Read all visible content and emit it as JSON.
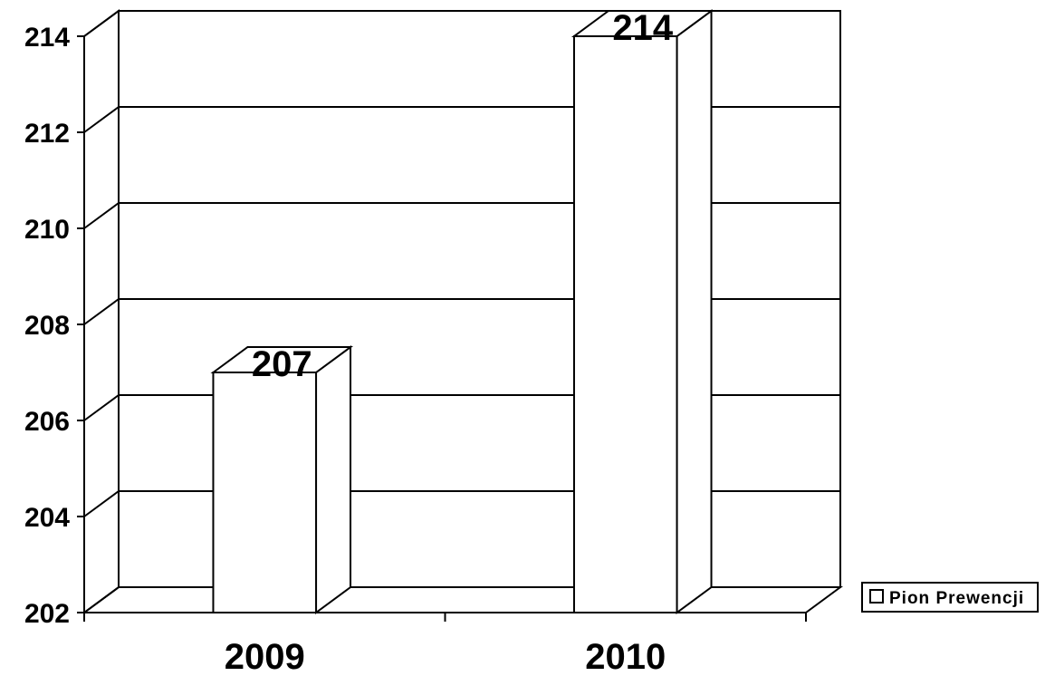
{
  "chart_data": {
    "type": "bar",
    "categories": [
      "2009",
      "2010"
    ],
    "series": [
      {
        "name": "Pion Prewencji",
        "values": [
          207,
          214
        ]
      }
    ],
    "ylim": [
      202,
      214
    ],
    "yticks": [
      202,
      204,
      206,
      208,
      210,
      212,
      214
    ],
    "grid": true,
    "legend": "right",
    "data_labels": true,
    "style": "3d"
  }
}
